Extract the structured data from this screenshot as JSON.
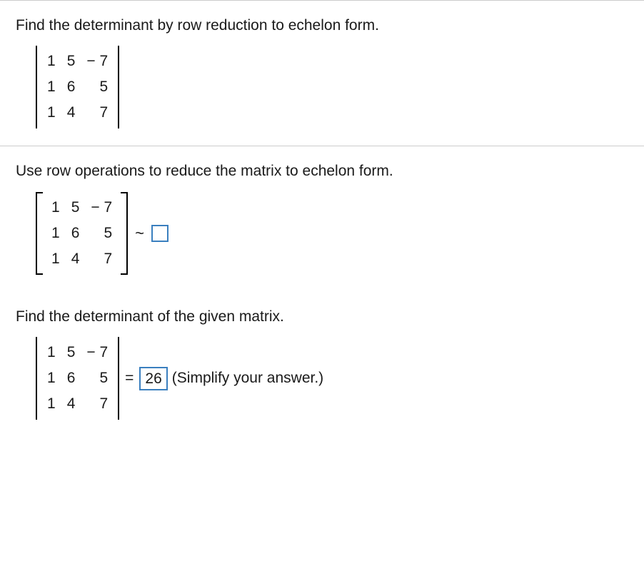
{
  "top_rule": true,
  "section1": {
    "prompt": "Find the determinant by row reduction to echelon form.",
    "matrix_style": "determinant",
    "matrix": {
      "rows": [
        [
          "1",
          "5",
          "− 7"
        ],
        [
          "1",
          "6",
          "5"
        ],
        [
          "1",
          "4",
          "7"
        ]
      ]
    }
  },
  "section2": {
    "prompt": "Use row operations to reduce the matrix to echelon form.",
    "matrix_style": "bracket",
    "matrix": {
      "rows": [
        [
          "1",
          "5",
          "− 7"
        ],
        [
          "1",
          "6",
          "5"
        ],
        [
          "1",
          "4",
          "7"
        ]
      ]
    },
    "tilde": "~",
    "result_placeholder": true
  },
  "section3": {
    "prompt": "Find the determinant of the given matrix.",
    "matrix_style": "determinant",
    "matrix": {
      "rows": [
        [
          "1",
          "5",
          "− 7"
        ],
        [
          "1",
          "6",
          "5"
        ],
        [
          "1",
          "4",
          "7"
        ]
      ]
    },
    "equals": "=",
    "answer": "26",
    "hint": "(Simplify your answer.)"
  },
  "colors": {
    "text": "#1a1a1a",
    "rule": "#cccccc",
    "answer_box_border": "#3a7fbf",
    "background": "#ffffff"
  }
}
